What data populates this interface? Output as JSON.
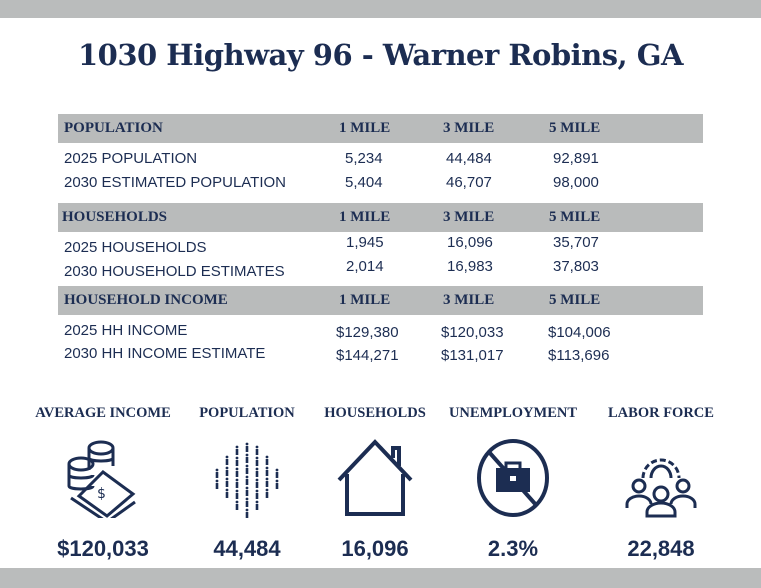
{
  "title": "1030 Highway 96 - Warner Robins, GA",
  "sections": [
    {
      "header": "POPULATION",
      "cols": [
        "1 MILE",
        "3 MILE",
        "5 MILE"
      ],
      "rows": [
        {
          "label": "2025 POPULATION",
          "values": [
            "5,234",
            "44,484",
            "92,891"
          ]
        },
        {
          "label": "2030 ESTIMATED POPULATION",
          "values": [
            "5,404",
            "46,707",
            "98,000"
          ]
        }
      ]
    },
    {
      "header": "HOUSEHOLDS",
      "cols": [
        "1 MILE",
        "3 MILE",
        "5 MILE"
      ],
      "rows": [
        {
          "label": "2025 HOUSEHOLDS",
          "values": [
            "1,945",
            "16,096",
            "35,707"
          ]
        },
        {
          "label": "2030 HOUSEHOLD ESTIMATES",
          "values": [
            "2,014",
            "16,983",
            "37,803"
          ]
        }
      ]
    },
    {
      "header": "HOUSEHOLD INCOME",
      "cols": [
        "1 MILE",
        "3 MILE",
        "5 MILE"
      ],
      "rows": [
        {
          "label": "2025 HH INCOME",
          "values": [
            "$129,380",
            "$120,033",
            "$104,006"
          ]
        },
        {
          "label": "2030 HH INCOME ESTIMATE",
          "values": [
            "$144,271",
            "$131,017",
            "$113,696"
          ]
        }
      ]
    }
  ],
  "stats": [
    {
      "label": "AVERAGE INCOME",
      "value": "$120,033",
      "icon": "money-icon"
    },
    {
      "label": "POPULATION",
      "value": "44,484",
      "icon": "people-crowd-icon"
    },
    {
      "label": "HOUSEHOLDS",
      "value": "16,096",
      "icon": "house-icon"
    },
    {
      "label": "UNEMPLOYMENT",
      "value": "2.3%",
      "icon": "no-briefcase-icon"
    },
    {
      "label": "LABOR FORCE",
      "value": "22,848",
      "icon": "workforce-gear-icon"
    }
  ],
  "colors": {
    "navy": "#1c2d52",
    "gray": "#b9bbbb"
  }
}
